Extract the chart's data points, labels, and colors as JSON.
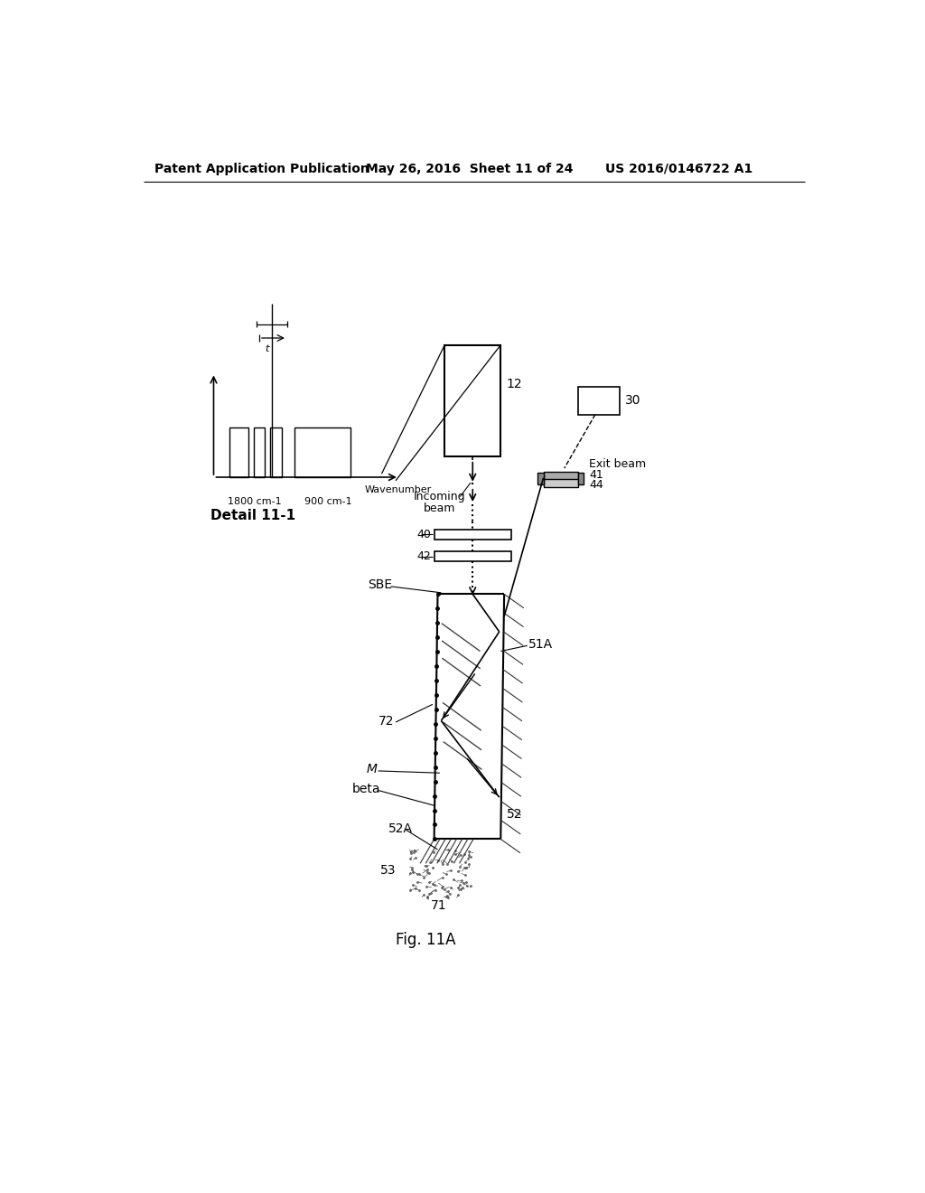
{
  "header_left": "Patent Application Publication",
  "header_mid": "May 26, 2016  Sheet 11 of 24",
  "header_right": "US 2016/0146722 A1",
  "fig_label": "Fig. 11A",
  "bg_color": "#ffffff"
}
